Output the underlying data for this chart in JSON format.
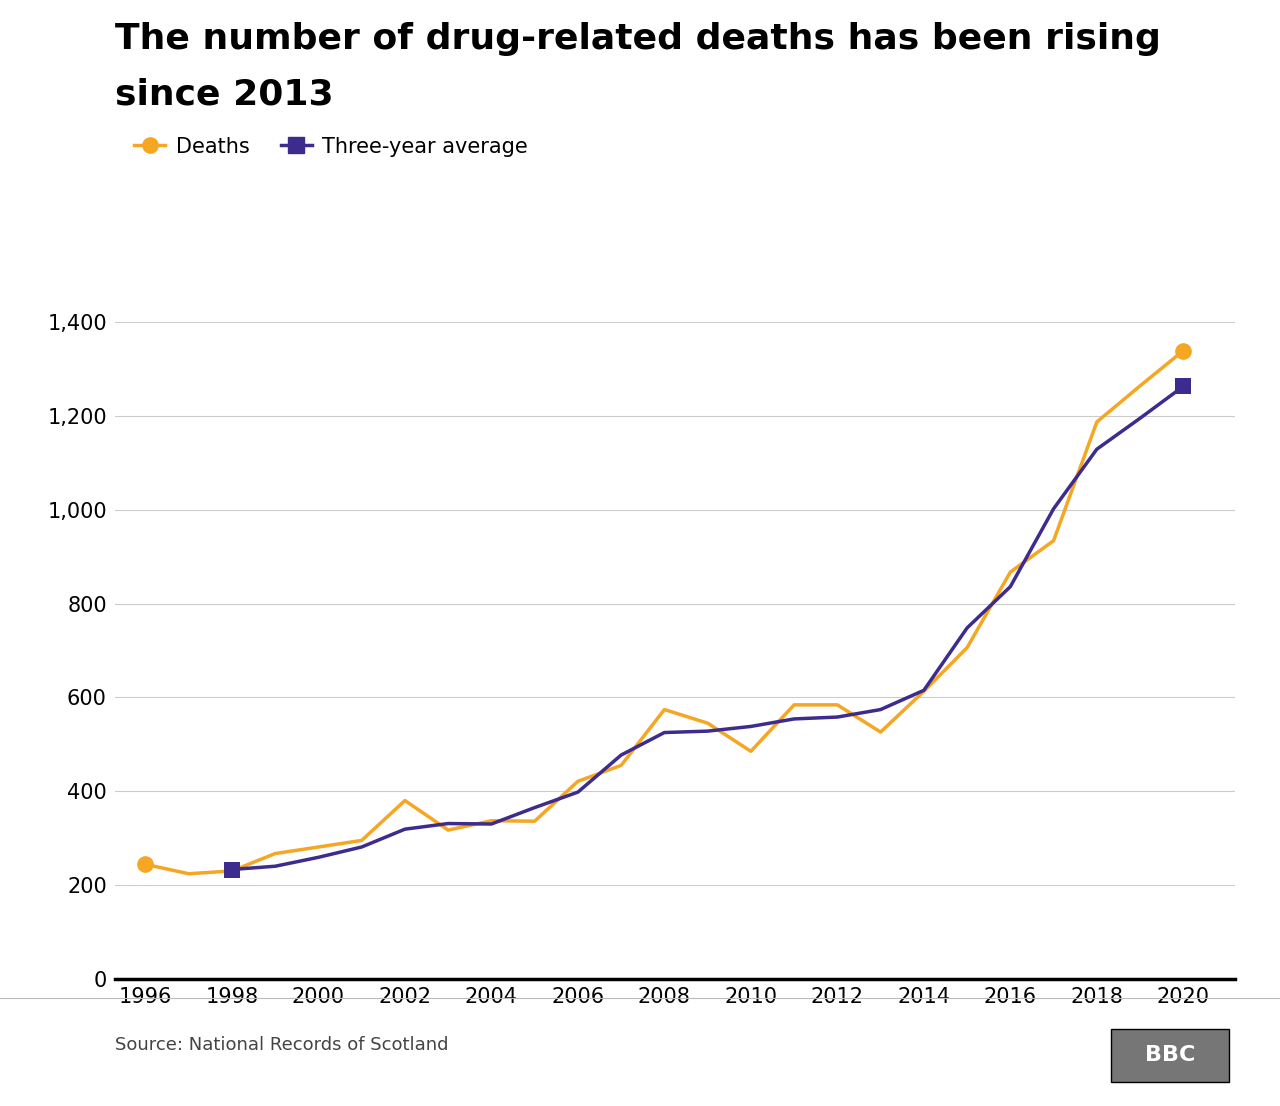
{
  "title_line1": "The number of drug-related deaths has been rising",
  "title_line2": "since 2013",
  "source": "Source: National Records of Scotland",
  "deaths_years": [
    1996,
    1997,
    1998,
    1999,
    2000,
    2001,
    2002,
    2003,
    2004,
    2005,
    2006,
    2007,
    2008,
    2009,
    2010,
    2011,
    2012,
    2013,
    2014,
    2015,
    2016,
    2017,
    2018,
    2019,
    2020
  ],
  "deaths_values": [
    244,
    224,
    230,
    267,
    281,
    295,
    380,
    317,
    337,
    336,
    421,
    455,
    574,
    545,
    485,
    584,
    584,
    526,
    613,
    706,
    867,
    934,
    1187,
    1264,
    1339
  ],
  "avg_years": [
    1998,
    1999,
    2000,
    2001,
    2002,
    2003,
    2004,
    2005,
    2006,
    2007,
    2008,
    2009,
    2010,
    2011,
    2012,
    2013,
    2014,
    2015,
    2016,
    2017,
    2018,
    2019,
    2020
  ],
  "avg_values": [
    233,
    240,
    259,
    281,
    319,
    331,
    330,
    365,
    398,
    477,
    525,
    528,
    538,
    554,
    558,
    574,
    615,
    748,
    836,
    1002,
    1129,
    1195,
    1263
  ],
  "deaths_color": "#f5a623",
  "avg_color": "#3d2b8e",
  "bg_color": "#ffffff",
  "grid_color": "#cccccc",
  "title_color": "#000000",
  "source_color": "#444444",
  "bbc_bg_color": "#767676",
  "ylabel_ticks": [
    0,
    200,
    400,
    600,
    800,
    1000,
    1200,
    1400
  ],
  "xlabel_ticks": [
    1996,
    1998,
    2000,
    2002,
    2004,
    2006,
    2008,
    2010,
    2012,
    2014,
    2016,
    2018,
    2020
  ],
  "xlim_left": 1995.3,
  "xlim_right": 2021.2,
  "ylim_top": 1450,
  "title_fontsize": 26,
  "tick_fontsize": 15,
  "legend_fontsize": 15,
  "source_fontsize": 13,
  "line_width": 2.5,
  "deaths_marker": "o",
  "avg_marker": "s",
  "endpoint_marker_size": 12
}
